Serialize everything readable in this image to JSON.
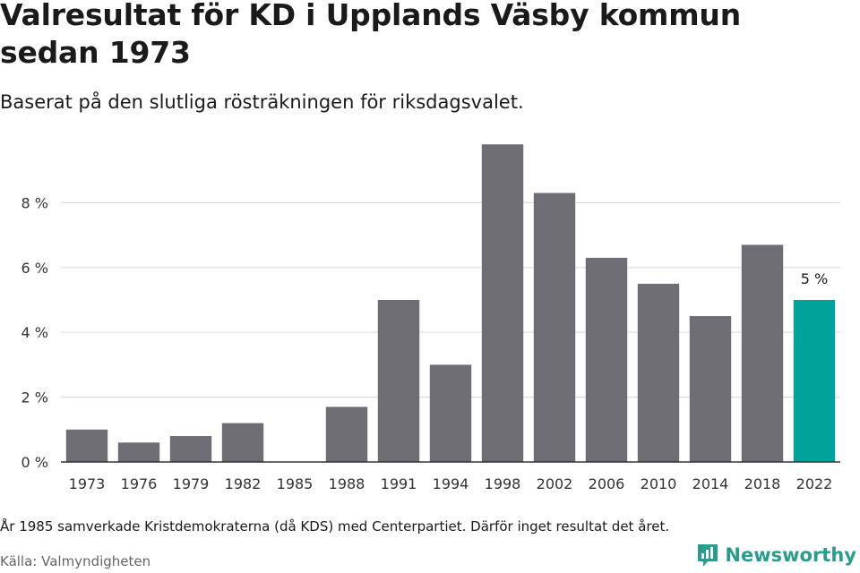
{
  "header": {
    "title": "Valresultat för KD i Upplands Väsby kommun sedan 1973",
    "subtitle": "Baserat på den slutliga rösträkningen för riksdagsvalet."
  },
  "footer": {
    "note": "År 1985 samverkade Kristdemokraterna (då KDS) med Centerpartiet. Därför inget resultat det året.",
    "source": "Källa: Valmyndigheten",
    "brand": "Newsworthy"
  },
  "colors": {
    "bar": "#6e6d73",
    "highlight": "#00a29b",
    "grid": "#dddddd",
    "axis": "#333333"
  },
  "chart_data": {
    "type": "bar",
    "title": "Valresultat för KD i Upplands Väsby kommun sedan 1973",
    "xlabel": "",
    "ylabel": "",
    "categories": [
      "1973",
      "1976",
      "1979",
      "1982",
      "1985",
      "1988",
      "1991",
      "1994",
      "1998",
      "2002",
      "2006",
      "2010",
      "2014",
      "2018",
      "2022"
    ],
    "values": [
      1.0,
      0.6,
      0.8,
      1.2,
      null,
      1.7,
      5.0,
      3.0,
      9.8,
      8.3,
      6.3,
      5.5,
      4.5,
      6.7,
      5.0
    ],
    "ylim": [
      0,
      10
    ],
    "yticks": [
      0,
      2,
      4,
      6,
      8
    ],
    "ytick_labels": [
      "0 %",
      "2 %",
      "4 %",
      "6 %",
      "8 %"
    ],
    "highlight_index": 14,
    "data_labels": [
      {
        "index": 14,
        "text": "5 %"
      }
    ],
    "grid": true
  }
}
